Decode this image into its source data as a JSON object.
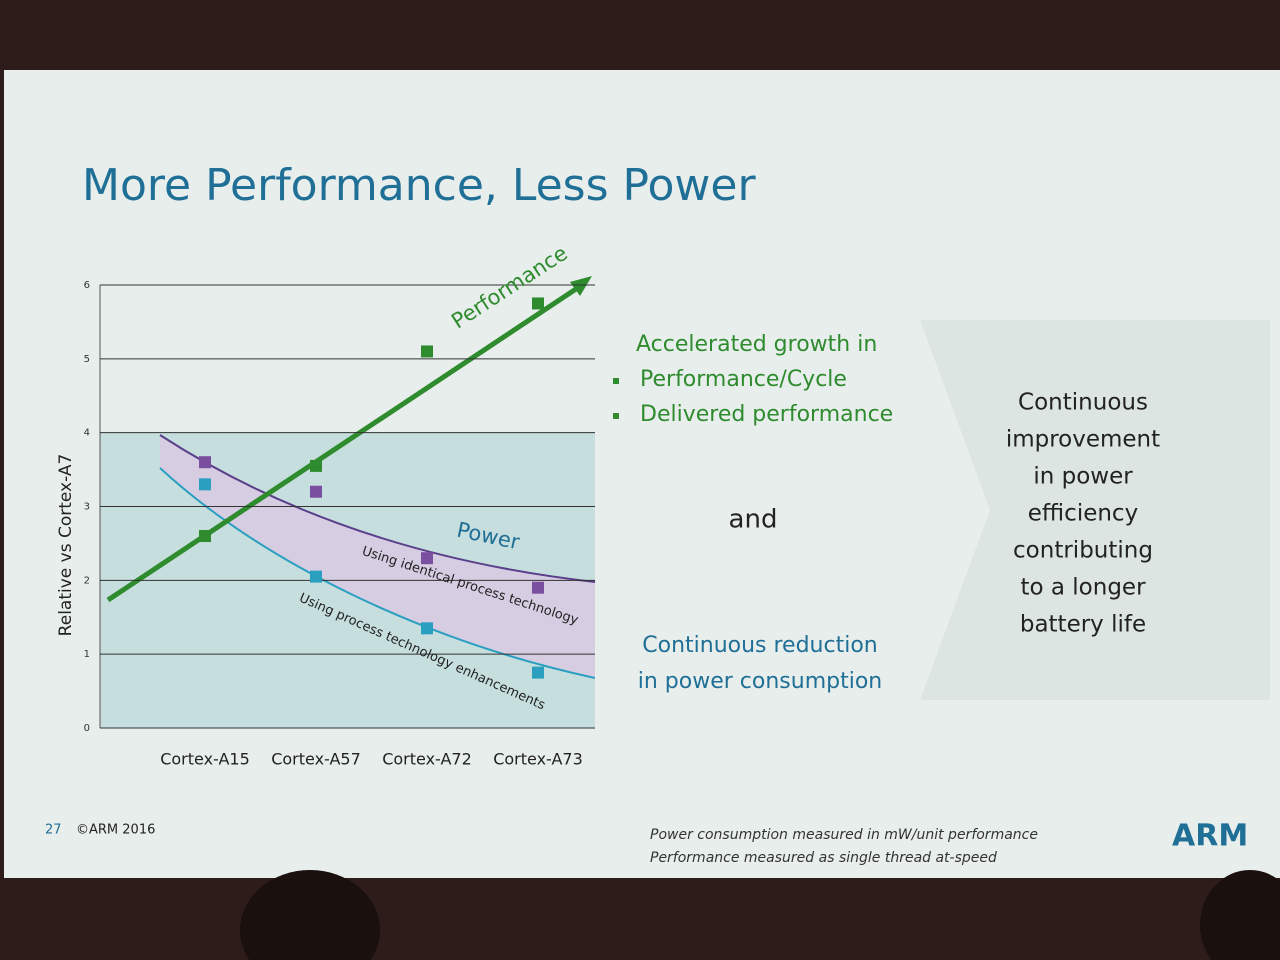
{
  "slide_title": "More Performance, Less Power",
  "chart_data": {
    "type": "scatter",
    "y_label": "Relative vs Cortex-A7",
    "categories": [
      "Cortex-A15",
      "Cortex-A57",
      "Cortex-A72",
      "Cortex-A73"
    ],
    "series": [
      {
        "name": "Performance",
        "color": "#2e8b2e",
        "values": [
          2.6,
          3.55,
          5.1,
          5.75
        ]
      },
      {
        "name": "Using identical process technology",
        "color": "#7a4fa0",
        "values": [
          3.6,
          3.2,
          2.3,
          1.9
        ]
      },
      {
        "name": "Using process technology enhancements",
        "color": "#2a9fc0",
        "values": [
          3.3,
          2.05,
          1.35,
          0.75
        ]
      }
    ],
    "annotation": "Power",
    "ylim": [
      0,
      6
    ],
    "yticks": [
      0,
      1,
      2,
      3,
      4,
      5,
      6
    ],
    "grid": true
  },
  "growth": {
    "heading": "Accelerated growth in",
    "bullets": [
      "Performance/Cycle",
      "Delivered performance"
    ]
  },
  "connector": "and",
  "reduction": [
    "Continuous reduction",
    "in power consumption"
  ],
  "conclusion": [
    "Continuous",
    "improvement",
    "in power",
    "efficiency",
    "contributing",
    "to a longer",
    "battery life"
  ],
  "footer": {
    "page": "27",
    "copyright": "©ARM 2016",
    "notes": [
      "Power consumption measured in mW/unit performance",
      "Performance measured as single thread at-speed"
    ],
    "logo": "ARM"
  }
}
